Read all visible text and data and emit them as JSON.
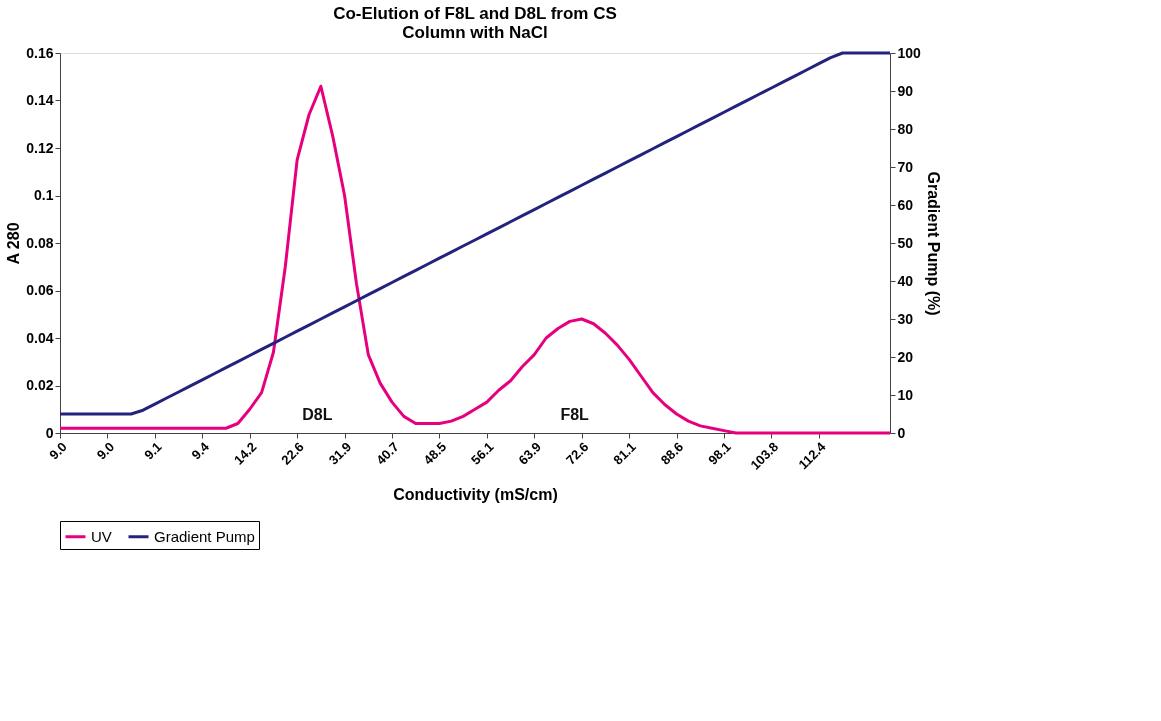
{
  "chart_data": {
    "type": "line",
    "title": [
      "Co-Elution of F8L and D8L from CS",
      "Column with NaCl"
    ],
    "xlabel": "Conductivity (mS/cm)",
    "ylabel": "A 280",
    "y2label": "Gradient Pump (%)",
    "categories": [
      "9.0",
      null,
      null,
      null,
      "9.0",
      null,
      null,
      null,
      "9.1",
      null,
      null,
      null,
      "9.4",
      null,
      null,
      null,
      "14.2",
      null,
      null,
      null,
      "22.6",
      null,
      null,
      null,
      "31.9",
      null,
      null,
      null,
      "40.7",
      null,
      null,
      null,
      "48.5",
      null,
      null,
      null,
      "56.1",
      null,
      null,
      null,
      "63.9",
      null,
      null,
      null,
      "72.6",
      null,
      null,
      null,
      "81.1",
      null,
      null,
      null,
      "88.6",
      null,
      null,
      null,
      "98.1",
      null,
      null,
      null,
      "103.8",
      null,
      null,
      null,
      "112.4",
      null,
      null,
      null,
      null,
      null,
      null
    ],
    "series": [
      {
        "name": "UV",
        "color": "#e6007e",
        "values": [
          0.002,
          0.002,
          0.002,
          0.002,
          0.002,
          0.002,
          0.002,
          0.002,
          0.002,
          0.002,
          0.002,
          0.002,
          0.002,
          0.002,
          0.002,
          0.004,
          0.01,
          0.017,
          0.034,
          0.07,
          0.115,
          0.134,
          0.146,
          0.125,
          0.1,
          0.063,
          0.033,
          0.021,
          0.013,
          0.007,
          0.004,
          0.004,
          0.004,
          0.005,
          0.007,
          0.01,
          0.013,
          0.018,
          0.022,
          0.028,
          0.033,
          0.04,
          0.044,
          0.047,
          0.048,
          0.046,
          0.042,
          0.037,
          0.031,
          0.024,
          0.017,
          0.012,
          0.008,
          0.005,
          0.003,
          0.002,
          0.001,
          0,
          0,
          0,
          0,
          0,
          0,
          0,
          0,
          0,
          0,
          0,
          0,
          0,
          0
        ]
      },
      {
        "name": "Gradient Pump",
        "color": "#23237e",
        "axis": "y2",
        "values": [
          5,
          5,
          5,
          5,
          5,
          5,
          5,
          6.0,
          7.6,
          9.2,
          10.8,
          12.4,
          14.0,
          15.6,
          17.2,
          18.8,
          20.4,
          22.0,
          23.6,
          25.2,
          26.8,
          28.4,
          30.0,
          31.6,
          33.2,
          34.8,
          36.4,
          38.0,
          39.6,
          41.2,
          42.8,
          44.4,
          46.0,
          47.6,
          49.2,
          50.8,
          52.4,
          54.0,
          55.6,
          57.2,
          58.8,
          60.4,
          62.0,
          63.6,
          65.2,
          66.8,
          68.4,
          70.0,
          71.6,
          73.2,
          74.8,
          76.4,
          78.0,
          79.6,
          81.2,
          82.8,
          84.4,
          86.0,
          87.6,
          89.2,
          90.8,
          92.4,
          94.0,
          95.6,
          97.2,
          98.8,
          100,
          100,
          100,
          100,
          100
        ]
      }
    ],
    "ylim": [
      0,
      0.16
    ],
    "yticks": [
      0,
      0.02,
      0.04,
      0.06,
      0.08,
      0.1,
      0.12,
      0.14,
      0.16
    ],
    "y2lim": [
      0,
      100
    ],
    "y2ticks": [
      0,
      10,
      20,
      30,
      40,
      50,
      60,
      70,
      80,
      90,
      100
    ],
    "annotations": [
      "D8L",
      "F8L"
    ],
    "grid": false,
    "legend": "bottom",
    "marker": "none",
    "line_style": "solid"
  }
}
